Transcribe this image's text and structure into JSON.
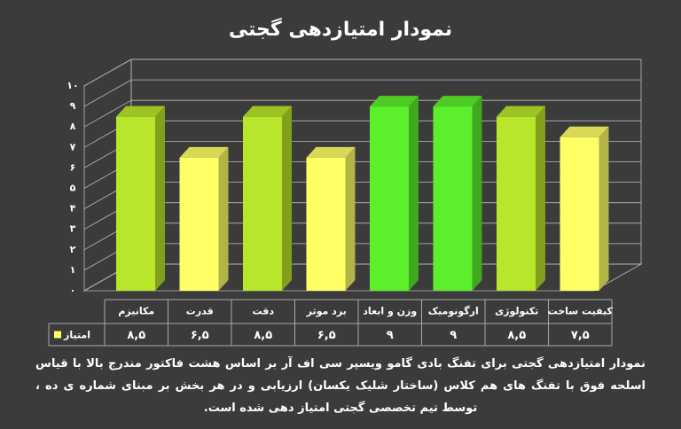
{
  "chart_data": {
    "type": "bar3d",
    "title": "نمودار امتیازدهی گجتی",
    "categories": [
      "مکانیزم",
      "قدرت",
      "دقت",
      "برد موثر",
      "وزن و ابعاد",
      "ارگونومیک",
      "تکنولوژی",
      "کیفیت ساخت"
    ],
    "series": [
      {
        "name": "امتیاز",
        "color": "#ffff66",
        "colors": [
          "#b8e62a",
          "#ffff66",
          "#b8e62a",
          "#ffff66",
          "#5cf02c",
          "#5cf02c",
          "#b8e62a",
          "#ffff66"
        ],
        "values": [
          8.5,
          6.5,
          8.5,
          6.5,
          9,
          9,
          8.5,
          7.5
        ],
        "value_labels": [
          "۸,۵",
          "۶,۵",
          "۸,۵",
          "۶,۵",
          "۹",
          "۹",
          "۸,۵",
          "۷,۵"
        ]
      }
    ],
    "ylim": [
      0,
      10
    ],
    "yticks": [
      {
        "value": 0,
        "label": "۰"
      },
      {
        "value": 1,
        "label": "۱"
      },
      {
        "value": 2,
        "label": "۲"
      },
      {
        "value": 3,
        "label": "۳"
      },
      {
        "value": 4,
        "label": "۴"
      },
      {
        "value": 5,
        "label": "۵"
      },
      {
        "value": 6,
        "label": "۶"
      },
      {
        "value": 7,
        "label": "۷"
      },
      {
        "value": 8,
        "label": "۸"
      },
      {
        "value": 9,
        "label": "۹"
      },
      {
        "value": 10,
        "label": "۱۰"
      }
    ],
    "grid": true,
    "caption": "نمودار امتیازدهی گجتی برای تفنگ بادی گامو ویسپر سی اف آر بر اساس هشت فاکتور مندرج بالا با قیاس اسلحه فوق با تفنگ های هم کلاس (ساختار شلیک یکسان) ارزیابی و در هر بخش بر مبنای شماره ی ده ، توسط تیم تخصصی گجتی امتیاز دهی شده است."
  }
}
